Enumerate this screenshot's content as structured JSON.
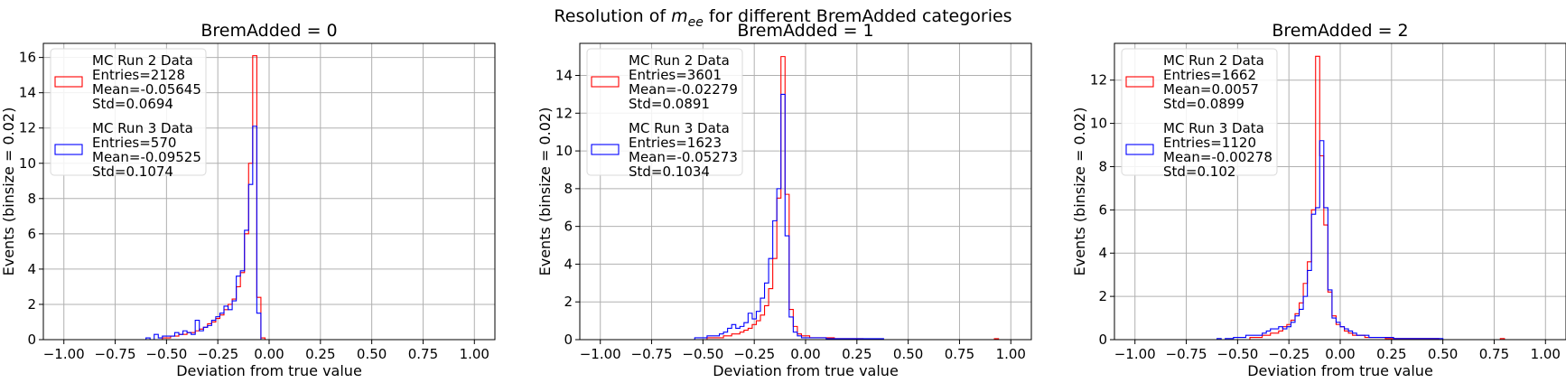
{
  "figure": {
    "suptitle_prefix": "Resolution of ",
    "suptitle_math_base": "m",
    "suptitle_math_sub": "ee",
    "suptitle_suffix": " for different BremAdded categories"
  },
  "chart_data": [
    {
      "type": "histogram",
      "title": "BremAdded = 0",
      "xlabel": "Deviation from true value",
      "ylabel": "Events (binsize = 0.02)",
      "xlim": [
        -1.1,
        1.1
      ],
      "ylim": [
        0,
        16.8
      ],
      "xticks": [
        -1.0,
        -0.75,
        -0.5,
        -0.25,
        0.0,
        0.25,
        0.5,
        0.75,
        1.0
      ],
      "xtick_labels": [
        "−1.00",
        "−0.75",
        "−0.50",
        "−0.25",
        "0.00",
        "0.25",
        "0.50",
        "0.75",
        "1.00"
      ],
      "yticks": [
        0,
        2,
        4,
        6,
        8,
        10,
        12,
        14,
        16
      ],
      "ytick_labels": [
        "0",
        "2",
        "4",
        "6",
        "8",
        "10",
        "12",
        "14",
        "16"
      ],
      "grid": true,
      "legend_position": "upper-left",
      "series": [
        {
          "name": "MC Run 2 Data",
          "stats": [
            "Entries=2128",
            "Mean=-0.05645",
            "Std=0.0694"
          ],
          "color": "#ff0000",
          "bin_start": -0.6,
          "bin_width": 0.02,
          "values": [
            0,
            0,
            0,
            0,
            0.1,
            0.1,
            0.2,
            0.2,
            0.3,
            0.3,
            0.4,
            0.4,
            0.5,
            0.6,
            0.7,
            0.9,
            1.0,
            1.2,
            1.4,
            1.7,
            2.0,
            2.3,
            3.0,
            3.8,
            6.0,
            10.0,
            16.1,
            2.4,
            0.1,
            0
          ]
        },
        {
          "name": "MC Run 3 Data",
          "stats": [
            "Entries=570",
            "Mean=-0.09525",
            "Std=0.1074"
          ],
          "color": "#0000ff",
          "bin_start": -0.6,
          "bin_width": 0.02,
          "values": [
            0.1,
            0,
            0.3,
            0.1,
            0.2,
            0.2,
            0.2,
            0.4,
            0.3,
            0.5,
            0.4,
            0.3,
            1.1,
            0.5,
            0.7,
            0.8,
            1.1,
            1.3,
            1.5,
            1.9,
            1.7,
            2.2,
            3.6,
            3.9,
            6.2,
            8.8,
            12.1,
            1.5,
            0,
            0
          ]
        }
      ]
    },
    {
      "type": "histogram",
      "title": "BremAdded = 1",
      "xlabel": "Deviation from true value",
      "ylabel": "Events (binsize = 0.02)",
      "xlim": [
        -1.1,
        1.1
      ],
      "ylim": [
        0,
        15.7
      ],
      "xticks": [
        -1.0,
        -0.75,
        -0.5,
        -0.25,
        0.0,
        0.25,
        0.5,
        0.75,
        1.0
      ],
      "xtick_labels": [
        "−1.00",
        "−0.75",
        "−0.50",
        "−0.25",
        "0.00",
        "0.25",
        "0.50",
        "0.75",
        "1.00"
      ],
      "yticks": [
        0,
        2,
        4,
        6,
        8,
        10,
        12,
        14
      ],
      "ytick_labels": [
        "0",
        "2",
        "4",
        "6",
        "8",
        "10",
        "12",
        "14"
      ],
      "grid": true,
      "legend_position": "upper-left",
      "series": [
        {
          "name": "MC Run 2 Data",
          "stats": [
            "Entries=3601",
            "Mean=-0.02279",
            "Std=0.0891"
          ],
          "color": "#ff0000",
          "bin_start": -0.6,
          "bin_width": 0.02,
          "values": [
            0,
            0,
            0,
            0,
            0,
            0,
            0.1,
            0.1,
            0.1,
            0.1,
            0.2,
            0.2,
            0.3,
            0.3,
            0.4,
            0.5,
            0.6,
            0.8,
            1.0,
            1.3,
            1.8,
            2.7,
            4.3,
            7.5,
            15.0,
            7.7,
            1.6,
            0.7,
            0.3,
            0.2,
            0.2,
            0.1,
            0.1,
            0.1,
            0.1,
            0.1,
            0.1,
            0.05,
            0.05,
            0.05,
            0.05,
            0.05,
            0.05,
            0.05,
            0,
            0,
            0,
            0,
            0,
            0,
            0,
            0,
            0,
            0,
            0,
            0,
            0,
            0,
            0,
            0,
            0,
            0,
            0,
            0,
            0,
            0,
            0,
            0,
            0,
            0,
            0,
            0,
            0,
            0,
            0,
            0,
            0.05
          ]
        },
        {
          "name": "MC Run 3 Data",
          "stats": [
            "Entries=1623",
            "Mean=-0.05273",
            "Std=0.1034"
          ],
          "color": "#0000ff",
          "bin_start": -0.6,
          "bin_width": 0.02,
          "values": [
            0,
            0,
            0,
            0.1,
            0.1,
            0.1,
            0.2,
            0.2,
            0.2,
            0.3,
            0.4,
            0.6,
            0.8,
            0.6,
            0.7,
            0.9,
            1.4,
            1.1,
            1.5,
            2.2,
            3.0,
            4.3,
            6.3,
            8.0,
            13.0,
            5.5,
            1.2,
            0.4,
            0.2,
            0.1,
            0.1,
            0.1,
            0.1,
            0.1,
            0.1,
            0.05,
            0.05,
            0.05,
            0.05,
            0.05,
            0.05,
            0.05,
            0.05,
            0.05,
            0.05,
            0.05,
            0.05,
            0.05,
            0.05,
            0,
            0,
            0,
            0,
            0,
            0,
            0
          ]
        }
      ]
    },
    {
      "type": "histogram",
      "title": "BremAdded = 2",
      "xlabel": "Deviation from true value",
      "ylabel": "Events (binsize = 0.02)",
      "xlim": [
        -1.1,
        1.1
      ],
      "ylim": [
        0,
        13.7
      ],
      "xticks": [
        -1.0,
        -0.75,
        -0.5,
        -0.25,
        0.0,
        0.25,
        0.5,
        0.75,
        1.0
      ],
      "xtick_labels": [
        "−1.00",
        "−0.75",
        "−0.50",
        "−0.25",
        "0.00",
        "0.25",
        "0.50",
        "0.75",
        "1.00"
      ],
      "yticks": [
        0,
        2,
        4,
        6,
        8,
        10,
        12
      ],
      "ytick_labels": [
        "0",
        "2",
        "4",
        "6",
        "8",
        "10",
        "12"
      ],
      "grid": true,
      "legend_position": "upper-left",
      "series": [
        {
          "name": "MC Run 2 Data",
          "stats": [
            "Entries=1662",
            "Mean=0.0057",
            "Std=0.0899"
          ],
          "color": "#ff0000",
          "bin_start": -0.6,
          "bin_width": 0.02,
          "values": [
            0,
            0,
            0,
            0,
            0,
            0,
            0,
            0,
            0.1,
            0.1,
            0.1,
            0.2,
            0.2,
            0.3,
            0.3,
            0.4,
            0.6,
            0.7,
            0.9,
            1.2,
            1.7,
            2.6,
            3.6,
            6.0,
            13.1,
            8.5,
            5.3,
            2.2,
            1.1,
            0.7,
            0.6,
            0.4,
            0.3,
            0.2,
            0.2,
            0.2,
            0.1,
            0.1,
            0.1,
            0.1,
            0.1,
            0.05,
            0.05,
            0.05,
            0.05,
            0.05,
            0.05,
            0.05,
            0.05,
            0.05,
            0.05,
            0.05,
            0.05,
            0.05,
            0,
            0,
            0,
            0,
            0,
            0,
            0,
            0,
            0,
            0,
            0,
            0,
            0,
            0,
            0,
            0.05,
            0
          ]
        },
        {
          "name": "MC Run 3 Data",
          "stats": [
            "Entries=1120",
            "Mean=-0.00278",
            "Std=0.102"
          ],
          "color": "#0000ff",
          "bin_start": -0.6,
          "bin_width": 0.02,
          "values": [
            0.05,
            0,
            0.05,
            0.05,
            0.1,
            0.1,
            0.1,
            0.2,
            0.2,
            0.2,
            0.2,
            0.3,
            0.4,
            0.5,
            0.5,
            0.6,
            0.5,
            0.6,
            0.8,
            1.1,
            1.4,
            2.0,
            3.2,
            5.8,
            6.1,
            9.2,
            6.1,
            2.3,
            1.0,
            0.8,
            0.6,
            0.5,
            0.4,
            0.3,
            0.2,
            0.2,
            0.2,
            0.1,
            0.1,
            0.1,
            0.1,
            0.1,
            0.1,
            0.05,
            0.05,
            0.05,
            0.05,
            0.05,
            0.05,
            0.05,
            0.05,
            0.05,
            0.05,
            0.05,
            0.05,
            0,
            0,
            0,
            0,
            0,
            0,
            0
          ]
        }
      ]
    }
  ]
}
